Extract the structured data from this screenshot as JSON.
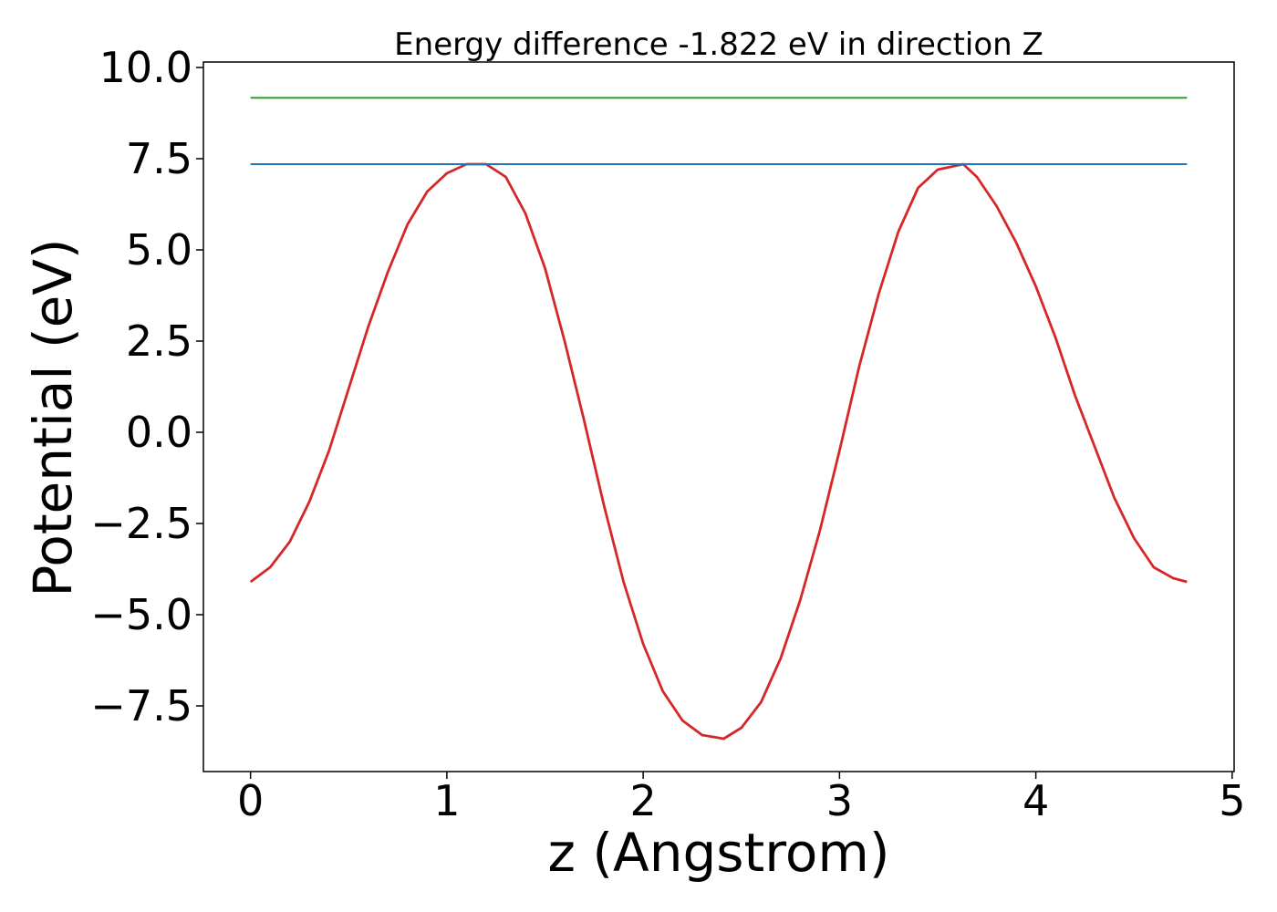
{
  "chart_data": {
    "type": "line",
    "title": "Energy difference -1.822 eV in direction Z",
    "xlabel": "z (Angstrom)",
    "ylabel": "Potential (eV)",
    "xlim": [
      -0.24,
      5.01
    ],
    "ylim": [
      -9.3,
      10.15
    ],
    "x_ticks": [
      0,
      1,
      2,
      3,
      4,
      5
    ],
    "x_tick_labels": [
      "0",
      "1",
      "2",
      "3",
      "4",
      "5"
    ],
    "y_ticks": [
      -7.5,
      -5.0,
      -2.5,
      0.0,
      2.5,
      5.0,
      7.5,
      10.0
    ],
    "y_tick_labels": [
      "−7.5",
      "−5.0",
      "−2.5",
      "0.0",
      "2.5",
      "5.0",
      "7.5",
      "10.0"
    ],
    "grid": false,
    "series": [
      {
        "color": "#d62728",
        "x": [
          0.0,
          0.1,
          0.2,
          0.3,
          0.4,
          0.5,
          0.6,
          0.7,
          0.8,
          0.9,
          1.0,
          1.1,
          1.2,
          1.3,
          1.4,
          1.5,
          1.6,
          1.7,
          1.8,
          1.9,
          2.0,
          2.1,
          2.2,
          2.3,
          2.41,
          2.5,
          2.6,
          2.7,
          2.8,
          2.9,
          3.0,
          3.1,
          3.2,
          3.3,
          3.4,
          3.5,
          3.63,
          3.7,
          3.8,
          3.9,
          4.0,
          4.1,
          4.2,
          4.3,
          4.4,
          4.5,
          4.6,
          4.7,
          4.77
        ],
        "y": [
          -4.1,
          -3.7,
          -3.0,
          -1.9,
          -0.5,
          1.2,
          2.9,
          4.4,
          5.7,
          6.6,
          7.1,
          7.35,
          7.35,
          7.0,
          6.0,
          4.5,
          2.5,
          0.3,
          -2.0,
          -4.1,
          -5.8,
          -7.1,
          -7.9,
          -8.3,
          -8.4,
          -8.1,
          -7.4,
          -6.2,
          -4.6,
          -2.7,
          -0.5,
          1.8,
          3.8,
          5.5,
          6.7,
          7.2,
          7.35,
          7.0,
          6.2,
          5.2,
          4.0,
          2.6,
          1.0,
          -0.4,
          -1.8,
          -2.9,
          -3.7,
          -4.0,
          -4.1
        ]
      },
      {
        "color": "#1f77b4",
        "x": [
          0.0,
          4.77
        ],
        "y": [
          7.35,
          7.35
        ]
      },
      {
        "color": "#2ca02c",
        "x": [
          0.0,
          4.77
        ],
        "y": [
          9.17,
          9.17
        ]
      }
    ]
  }
}
